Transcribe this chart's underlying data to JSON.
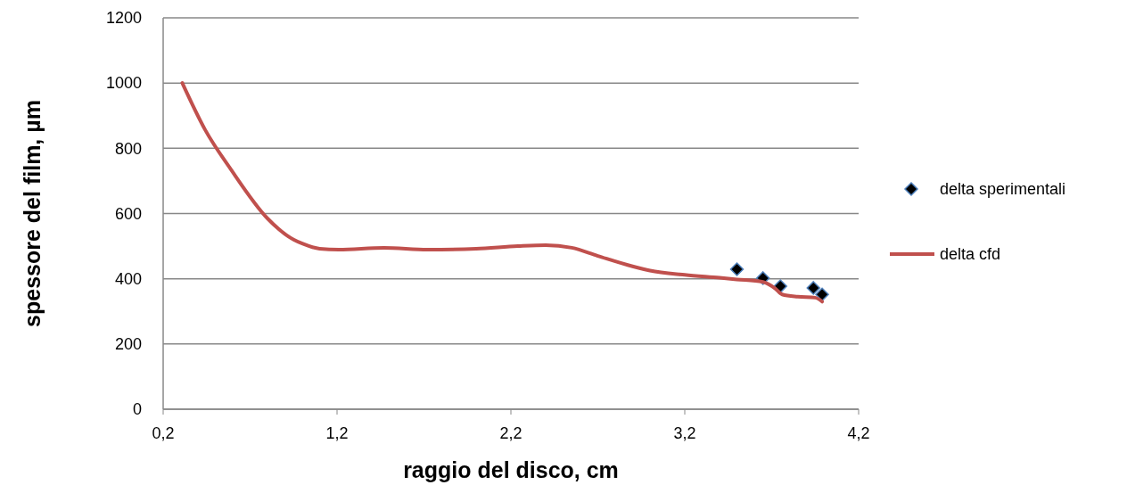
{
  "chart_data": {
    "type": "line",
    "xlabel": "raggio del disco, cm",
    "ylabel": "spessore del film, µm",
    "xlim": [
      0.2,
      4.2
    ],
    "xticks": [
      {
        "value": 0.2,
        "label": "0,2"
      },
      {
        "value": 1.2,
        "label": "1,2"
      },
      {
        "value": 2.2,
        "label": "2,2"
      },
      {
        "value": 3.2,
        "label": "3,2"
      },
      {
        "value": 4.2,
        "label": "4,2"
      }
    ],
    "ylim": [
      0,
      1200
    ],
    "yticks": [
      0,
      200,
      400,
      600,
      800,
      1000,
      1200
    ],
    "grid": "y",
    "legend": "right",
    "series": [
      {
        "name": "delta sperimentali",
        "type": "scatter",
        "marker": "diamond",
        "color": "#000000",
        "x": [
          3.5,
          3.65,
          3.75,
          3.94,
          3.99
        ],
        "values": [
          429,
          402,
          377,
          372,
          352
        ]
      },
      {
        "name": "delta cfd",
        "color": "#c0504d",
        "x": [
          0.31,
          0.44,
          0.59,
          0.8,
          0.95,
          1.0,
          1.1,
          1.21,
          1.47,
          1.72,
          2.0,
          2.24,
          2.4,
          2.55,
          2.7,
          2.9,
          3.0,
          3.2,
          3.4,
          3.5,
          3.65,
          3.72,
          3.76,
          3.85,
          3.95,
          3.99
        ],
        "values": [
          1000,
          858,
          735,
          585,
          520,
          508,
          492,
          489,
          495,
          489,
          492,
          500,
          503,
          495,
          470,
          438,
          425,
          412,
          403,
          398,
          390,
          370,
          352,
          345,
          342,
          330
        ]
      }
    ]
  }
}
